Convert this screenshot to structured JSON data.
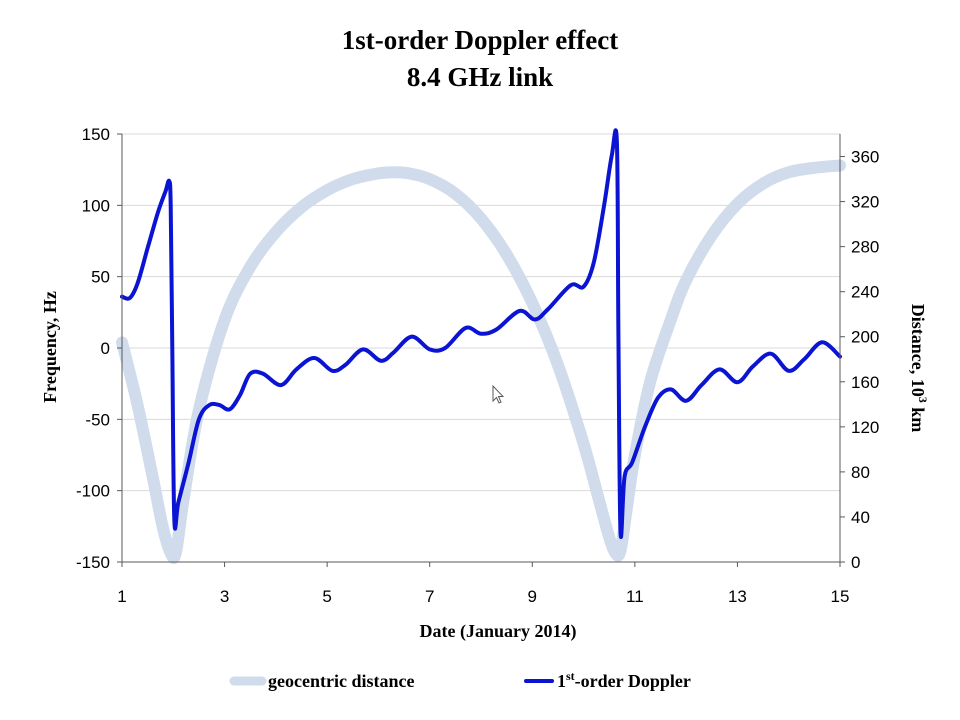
{
  "chart_data": {
    "type": "line",
    "title": [
      "1st-order Doppler effect",
      "8.4 GHz link"
    ],
    "xlabel": "Date (January 2014)",
    "ylabel_left": "Frequency, Hz",
    "ylabel_right_prefix": "Distance, 10",
    "ylabel_right_sup": "3",
    "ylabel_right_suffix": " km",
    "xlim": [
      1,
      15
    ],
    "ylim_left": [
      -150,
      150
    ],
    "ylim_right": [
      0,
      380
    ],
    "xticks": [
      "1",
      "3",
      "5",
      "7",
      "9",
      "11",
      "13",
      "15"
    ],
    "yticks_left": [
      "-150",
      "-100",
      "-50",
      "0",
      "50",
      "100",
      "150"
    ],
    "yticks_right": [
      "0",
      "40",
      "80",
      "120",
      "160",
      "200",
      "240",
      "280",
      "320",
      "360"
    ],
    "legend_position": "bottom",
    "series": [
      {
        "name": "geocentric distance",
        "axis": "right",
        "color": "#d0dcec",
        "x": [
          1.0,
          1.3,
          1.6,
          1.8,
          1.95,
          2.05,
          2.2,
          2.5,
          3.0,
          3.5,
          4.0,
          4.5,
          5.0,
          5.5,
          6.0,
          6.3,
          6.6,
          7.0,
          7.5,
          8.0,
          8.5,
          9.0,
          9.5,
          10.0,
          10.3,
          10.5,
          10.62,
          10.72,
          10.85,
          11.0,
          11.3,
          11.7,
          12.0,
          12.5,
          13.0,
          13.5,
          14.0,
          14.5,
          15.0
        ],
        "y": [
          195,
          140,
          75,
          30,
          8,
          8,
          55,
          135,
          215,
          262,
          293,
          315,
          330,
          340,
          345,
          346,
          345,
          340,
          327,
          305,
          273,
          230,
          175,
          105,
          55,
          22,
          8,
          10,
          50,
          95,
          160,
          215,
          250,
          290,
          318,
          336,
          346,
          350,
          352
        ]
      },
      {
        "name": "1st-order Doppler",
        "name_base": "1",
        "name_sup": "st",
        "name_rest": "-order Doppler",
        "axis": "left",
        "color": "#0a14d2",
        "x": [
          1.0,
          1.15,
          1.3,
          1.5,
          1.7,
          1.85,
          1.92,
          1.95,
          1.98,
          2.02,
          2.1,
          2.3,
          2.5,
          2.7,
          2.9,
          3.1,
          3.3,
          3.5,
          3.75,
          4.1,
          4.4,
          4.75,
          5.1,
          5.35,
          5.7,
          6.05,
          6.3,
          6.65,
          7.0,
          7.3,
          7.7,
          8.0,
          8.3,
          8.75,
          9.05,
          9.3,
          9.75,
          10.0,
          10.2,
          10.4,
          10.55,
          10.65,
          10.68,
          10.72,
          10.8,
          10.95,
          11.2,
          11.45,
          11.7,
          12.0,
          12.3,
          12.65,
          13.0,
          13.3,
          13.65,
          14.0,
          14.3,
          14.65,
          15.0
        ],
        "y": [
          36,
          35,
          45,
          70,
          95,
          110,
          117,
          100,
          0,
          -120,
          -108,
          -80,
          -50,
          -40,
          -40,
          -43,
          -33,
          -18,
          -18,
          -26,
          -15,
          -7,
          -16,
          -12,
          -1,
          -9,
          -3,
          8,
          -1,
          0,
          14,
          10,
          13,
          26,
          20,
          27,
          44,
          43,
          60,
          100,
          135,
          144,
          10,
          -129,
          -90,
          -80,
          -55,
          -35,
          -29,
          -37,
          -26,
          -15,
          -24,
          -13,
          -4,
          -16,
          -8,
          4,
          -6
        ]
      }
    ]
  }
}
